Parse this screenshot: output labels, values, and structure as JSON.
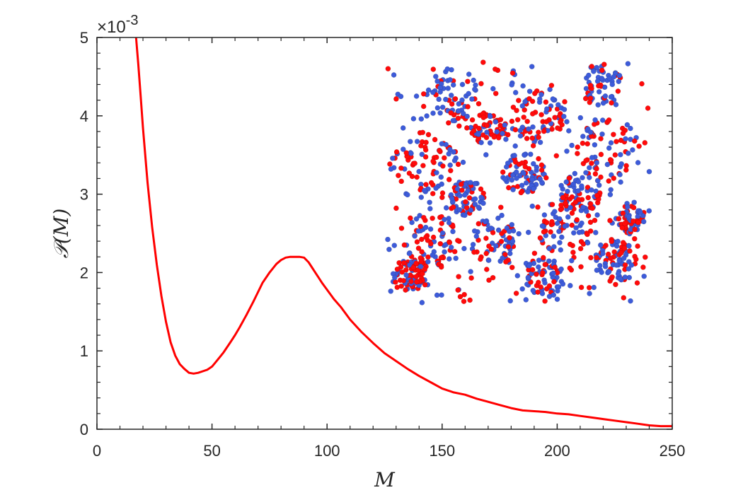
{
  "chart_data": {
    "type": "line",
    "title": "",
    "xlabel": "M",
    "ylabel": "𝒫(M)",
    "xlim": [
      0,
      250
    ],
    "ylim": [
      0,
      0.005
    ],
    "x_ticks": [
      "0",
      "50",
      "100",
      "150",
      "200",
      "250"
    ],
    "y_ticks": [
      "0",
      "1",
      "2",
      "3",
      "4",
      "5"
    ],
    "y_multiplier": "×10",
    "y_exponent": "-3",
    "grid": false,
    "series": [
      {
        "color": "#ff0000",
        "x": [
          17,
          18,
          19,
          20,
          22,
          24,
          26,
          28,
          30,
          32,
          34,
          36,
          38,
          40,
          42,
          44,
          46,
          48,
          50,
          52,
          55,
          58,
          60,
          62,
          65,
          68,
          70,
          72,
          75,
          78,
          80,
          82,
          84,
          86,
          88,
          90,
          92,
          94,
          96,
          98,
          100,
          103,
          106,
          110,
          115,
          120,
          125,
          130,
          135,
          140,
          145,
          150,
          155,
          160,
          165,
          170,
          175,
          180,
          185,
          190,
          195,
          200,
          205,
          210,
          215,
          220,
          225,
          230,
          235,
          240,
          245,
          250
        ],
        "y": [
          0.005,
          0.00465,
          0.00425,
          0.00385,
          0.00315,
          0.00258,
          0.0021,
          0.0017,
          0.00137,
          0.00111,
          0.00094,
          0.00083,
          0.00077,
          0.00072,
          0.00071,
          0.00072,
          0.00074,
          0.00076,
          0.0008,
          0.00087,
          0.00098,
          0.00111,
          0.0012,
          0.0013,
          0.00146,
          0.00163,
          0.00175,
          0.00187,
          0.002,
          0.00211,
          0.00216,
          0.00219,
          0.0022,
          0.0022,
          0.0022,
          0.00219,
          0.00213,
          0.00204,
          0.00195,
          0.00186,
          0.00178,
          0.00166,
          0.00156,
          0.0014,
          0.00124,
          0.0011,
          0.00097,
          0.00087,
          0.00077,
          0.00068,
          0.0006,
          0.00052,
          0.00047,
          0.00044,
          0.00039,
          0.00035,
          0.00031,
          0.00027,
          0.00024,
          0.00023,
          0.00022,
          0.0002,
          0.00019,
          0.00017,
          0.00015,
          0.00013,
          0.00011,
          9e-05,
          7e-05,
          5e-05,
          4e-05,
          4e-05
        ]
      }
    ],
    "inset": {
      "description_colors": [
        "#ff0a0a",
        "#3d5bd9"
      ],
      "type": "scatter"
    }
  }
}
